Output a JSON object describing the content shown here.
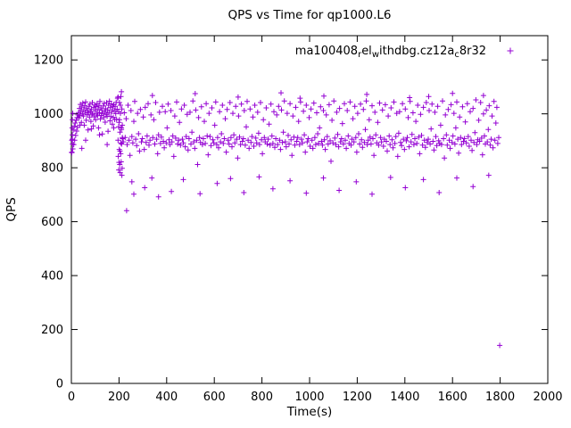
{
  "style": {
    "point_color": "#9400D3",
    "axis_color": "#000000",
    "background": "#FFFFFF"
  },
  "chart_data": {
    "type": "scatter",
    "title": "QPS vs Time for qp1000.L6",
    "xlabel": "Time(s)",
    "ylabel": "QPS",
    "xlim": [
      0,
      2000
    ],
    "ylim": [
      0,
      1290
    ],
    "xticks": [
      0,
      200,
      400,
      600,
      800,
      1000,
      1200,
      1400,
      1600,
      1800,
      2000
    ],
    "yticks": [
      0,
      200,
      400,
      600,
      800,
      1000,
      1200
    ],
    "grid": false,
    "legend_position": "top-right-inside",
    "series": [
      {
        "name": "ma100408_rel_withdbg.cz12a_c8r32",
        "label_parts": [
          {
            "t": "ma100408",
            "sub": false
          },
          {
            "t": "r",
            "sub": true
          },
          {
            "t": "el",
            "sub": false
          },
          {
            "t": "w",
            "sub": true
          },
          {
            "t": "ithdbg.cz12a",
            "sub": false
          },
          {
            "t": "c",
            "sub": true
          },
          {
            "t": "8r32",
            "sub": false
          }
        ],
        "marker": "plus",
        "color": "#9400D3",
        "segments": [
          {
            "x_start": 2,
            "x_step": 2,
            "y": [
              856,
              906,
              870,
              940,
              886,
              954,
              902,
              966,
              920,
              976,
              936,
              986,
              950,
              996
            ]
          },
          {
            "x_start": 30,
            "x_step": 2,
            "y": [
              1005,
              985,
              1020,
              995,
              1035,
              1010,
              968,
              1025,
              1000,
              1040,
              992,
              1015,
              958,
              1030,
              1006,
              1044,
              976,
              1021,
              997,
              1012,
              940,
              1003,
              1028,
              988,
              1036,
              1008,
              972,
              1018,
              996,
              1042,
              1002,
              955,
              1024,
              989,
              1033,
              1011,
              978,
              1027,
              999,
              1038,
              993,
              1016,
              948,
              1031,
              1004,
              1046,
              981,
              1022,
              994,
              1013,
              925,
              1001,
              1029,
              986,
              1039,
              1007,
              969,
              1019,
              998,
              1041,
              991,
              1014,
              935,
              1032,
              1003,
              1047,
              974,
              1023,
              990,
              1037,
              1009,
              962,
              1026,
              987,
              1034,
              1012,
              979,
              1028,
              1001,
              1043,
              980,
              1017,
              1058
            ]
          },
          {
            "x_start": 196,
            "x_step": 1,
            "y": [
              1062,
              842,
              1008,
              792,
              968,
              868,
              1042,
              812,
              932,
              782,
              1002,
              852,
              1064,
              822,
              948,
              888,
              1018,
              798,
              958,
              908
            ]
          },
          {
            "x_start": 196,
            "x_step": 2,
            "y": [
              902,
              952,
              820,
              978,
              862,
              1032,
              892,
              942,
              772,
              912
            ]
          },
          {
            "x_start": 218,
            "x_step": 4,
            "y": [
              896,
              1004,
              912,
              982,
              886,
              1032,
              902,
              846,
              1012,
              916,
              892,
              972,
              1046,
              906,
              882,
              1002,
              926,
              862,
              1016,
              896,
              908,
              988,
              868,
              1024,
              894,
              918,
              1038,
              884,
              902,
              996,
              762,
              912,
              978,
              888,
              1042,
              906,
              852,
              922,
              1006,
              890,
              914,
              1028,
              898,
              874,
              1008,
              892,
              948,
              1036,
              904,
              886,
              1012,
              896,
              918,
              842,
              992,
              910,
              1044,
              888,
              902,
              968,
              884,
              1018,
              906,
              892,
              1032,
              878,
              916,
              998,
              866,
              908,
              1006,
              888,
              932,
              1048,
              896,
              872,
              1014,
              902,
              812,
              986,
              912,
              894,
              1026,
              886,
              908,
              972,
              890,
              1038,
              918,
              848,
              1002,
              916,
              882,
              1022,
              904,
              892,
              958,
              1044,
              886,
              912,
              874,
              1008,
              896,
              926,
              1032,
              890,
              908,
              982,
              858,
              1016,
              902,
              888,
              1042,
              912,
              878,
              1002,
              922,
              892,
              1028,
              906,
              836,
              992,
              914,
              886,
              1036,
              898,
              908,
              1012,
              884,
              952,
              1046,
              902,
              872,
              1018,
              894,
              916,
              988,
              880,
              1032,
              910,
              892,
              1006,
              928,
              886,
              1042,
              904,
              852,
              978,
              912,
              896,
              1022,
              888,
              906,
              962,
              884,
              1036,
              918,
              890,
              1008,
              876,
              908,
              996,
              886,
              1028,
              902,
              868,
              1014,
              894,
              932,
              1048,
              896,
              878,
              1002,
              920,
              888,
              1038,
              904,
              846,
              992,
              914,
              884,
              1024,
              898,
              912,
              972,
              886,
              1044,
              906,
              892,
              1010,
              922,
              858,
              1032,
              896,
              908,
              986,
              880,
              1018,
              902,
              872,
              1040,
              912,
              886,
              1004,
              926,
              890,
              948,
              1026,
              898,
              884,
              1012,
              904,
              868,
              996,
              916,
              888,
              1034,
              900,
              824,
              976,
              892,
              1048,
              910,
              886,
              1006,
              924,
              878,
              1020,
              896,
              908,
              964,
              888,
              1038,
              902,
              872,
              1012,
              918,
              890,
              1044,
              884,
              906,
              982,
              896,
              1028,
              912,
              858,
              1002,
              926,
              888,
              1036,
              904,
              876,
              1016,
              894,
              942,
              1048,
              886,
              902,
              978,
              914,
              888,
              1030,
              908,
              846,
              1006,
              922,
              892,
              968,
              884,
              1040,
              912,
              896,
              1014,
              880,
              906,
              1034,
              898,
              862,
              992,
              918,
              886,
              1022,
              904,
              874,
              1044,
              890,
              916,
              1002,
              842,
              928,
              1008,
              894,
              882,
              1038,
              906,
              868,
              1018,
              900,
              912,
              986,
              878,
              1046,
              896,
              924,
              1004,
              886,
              908,
              972,
              890,
              1032,
              914,
              852,
              998,
              920,
              884,
              1024,
              902,
              876,
              1042,
              894,
              906,
              1012,
              888,
              944,
              1036,
              898,
              866,
              1006,
              916,
              882,
              1028,
              900,
              890,
              958,
              886,
              1048,
              908,
              836,
              996,
              922,
              884,
              1016,
              902,
              872,
              1034,
              894,
              918,
              1002,
              888,
              948,
              1044,
              906,
              854,
              988,
              912,
              886,
              1026,
              898,
              908,
              970,
              892,
              1038,
              916,
              880,
              1008,
              902,
              864,
              1020,
              894,
              930,
              1052,
              886,
              904,
              976,
              898,
              1042,
              910,
              848,
              1000,
              918,
              888,
              1014,
              896,
              942,
              1030,
              884,
              906,
              992,
              874,
              1046,
              902,
              966,
              1024,
              890,
              912
            ]
          }
        ],
        "points": [
          [
            2,
            858
          ],
          [
            2,
            902
          ],
          [
            3,
            948
          ],
          [
            4,
            978
          ],
          [
            4,
            922
          ],
          [
            5,
            888
          ],
          [
            6,
            1002
          ],
          [
            36,
            958
          ],
          [
            44,
            872
          ],
          [
            60,
            902
          ],
          [
            84,
            944
          ],
          [
            118,
            922
          ],
          [
            150,
            886
          ],
          [
            178,
            948
          ],
          [
            210,
            1082
          ],
          [
            232,
            641
          ],
          [
            254,
            748
          ],
          [
            262,
            702
          ],
          [
            308,
            726
          ],
          [
            340,
            1068
          ],
          [
            366,
            692
          ],
          [
            420,
            712
          ],
          [
            470,
            756
          ],
          [
            520,
            1075
          ],
          [
            540,
            704
          ],
          [
            612,
            742
          ],
          [
            668,
            760
          ],
          [
            700,
            1062
          ],
          [
            724,
            708
          ],
          [
            788,
            766
          ],
          [
            846,
            722
          ],
          [
            880,
            1078
          ],
          [
            918,
            752
          ],
          [
            960,
            1058
          ],
          [
            986,
            706
          ],
          [
            1058,
            762
          ],
          [
            1060,
            1066
          ],
          [
            1124,
            716
          ],
          [
            1196,
            748
          ],
          [
            1240,
            1072
          ],
          [
            1262,
            702
          ],
          [
            1340,
            764
          ],
          [
            1402,
            726
          ],
          [
            1420,
            1060
          ],
          [
            1478,
            756
          ],
          [
            1500,
            1064
          ],
          [
            1544,
            708
          ],
          [
            1600,
            1076
          ],
          [
            1618,
            762
          ],
          [
            1686,
            730
          ],
          [
            1730,
            1068
          ],
          [
            1752,
            772
          ],
          [
            1798,
            141
          ]
        ]
      }
    ]
  }
}
